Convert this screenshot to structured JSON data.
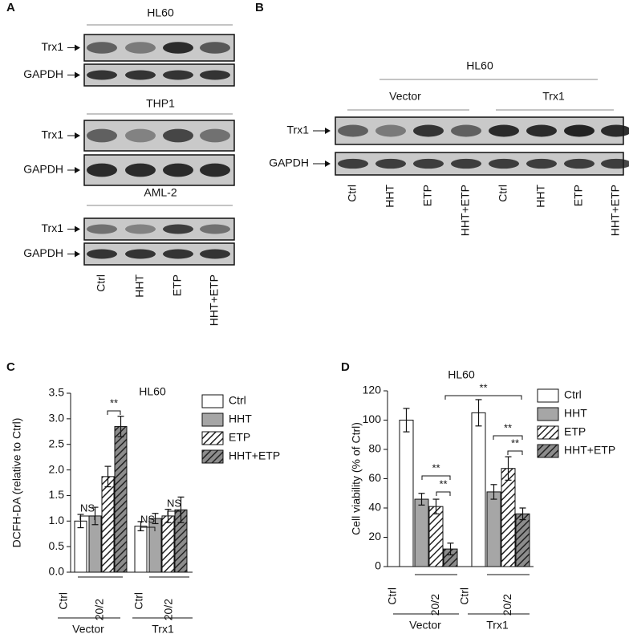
{
  "panel_labels": [
    "A",
    "B",
    "C",
    "D"
  ],
  "blots": [
    {
      "title": "HL60",
      "rows": [
        "Trx1",
        "GAPDH"
      ]
    },
    {
      "title": "THP1",
      "rows": [
        "Trx1",
        "GAPDH"
      ]
    },
    {
      "title": "AML-2",
      "rows": [
        "Trx1",
        "GAPDH"
      ]
    }
  ],
  "blot_lanes": [
    "Ctrl",
    "HHT",
    "ETP",
    "HHT+ETP"
  ],
  "blot_b": {
    "title": "HL60",
    "groups": [
      "Vector",
      "Trx1"
    ],
    "rows": [
      "Trx1",
      "GAPDH"
    ],
    "lanes": [
      "Ctrl",
      "HHT",
      "ETP",
      "HHT+ETP",
      "Ctrl",
      "HHT",
      "ETP",
      "HHT+ETP"
    ]
  },
  "chart_data": [
    {
      "type": "bar",
      "title": "HL60",
      "ylabel": "DCFH-DA (relative to Ctrl)",
      "categories": [
        "Vector",
        "Trx1"
      ],
      "sublabels": [
        "Ctrl",
        "20/2"
      ],
      "series": [
        {
          "name": "Ctrl",
          "color": "#ffffff",
          "hatch": false,
          "values": [
            1.0,
            0.9
          ],
          "errors": [
            0.13,
            0.09
          ]
        },
        {
          "name": "HHT",
          "color": "#a6a6a6",
          "hatch": false,
          "values": [
            1.1,
            1.05
          ],
          "errors": [
            0.17,
            0.1
          ]
        },
        {
          "name": "ETP",
          "color": "#ffffff",
          "hatch": true,
          "values": [
            1.87,
            1.1
          ],
          "errors": [
            0.2,
            0.13
          ]
        },
        {
          "name": "HHT+ETP",
          "color": "#8c8c8c",
          "hatch": true,
          "values": [
            2.85,
            1.22
          ],
          "errors": [
            0.2,
            0.25
          ]
        }
      ],
      "ylim": [
        0,
        3.5
      ],
      "yticks": [
        {
          "value": 0,
          "label": "0.0"
        },
        0.5,
        {
          "value": 1,
          "label": "1.0"
        },
        1.5,
        {
          "value": 2,
          "label": "2.0"
        },
        2.5,
        {
          "value": 3,
          "label": "3.0"
        },
        3.5
      ],
      "annotations": [
        "NS",
        "**",
        "NS",
        "NS"
      ],
      "legend": "right"
    },
    {
      "type": "bar",
      "title": "HL60",
      "ylabel": "Cell viability (% of Ctrl)",
      "categories": [
        "Vector",
        "Trx1"
      ],
      "sublabels": [
        "Ctrl",
        "20/2"
      ],
      "series": [
        {
          "name": "Ctrl",
          "color": "#ffffff",
          "hatch": false,
          "values": [
            100,
            105
          ],
          "errors": [
            8,
            9
          ]
        },
        {
          "name": "HHT",
          "color": "#a6a6a6",
          "hatch": false,
          "values": [
            46,
            51
          ],
          "errors": [
            4,
            5
          ]
        },
        {
          "name": "ETP",
          "color": "#ffffff",
          "hatch": true,
          "values": [
            41,
            67
          ],
          "errors": [
            5,
            8
          ]
        },
        {
          "name": "HHT+ETP",
          "color": "#8c8c8c",
          "hatch": true,
          "values": [
            12,
            36
          ],
          "errors": [
            4,
            4
          ]
        }
      ],
      "ylim": [
        0,
        120
      ],
      "yticks": [
        0,
        20,
        40,
        60,
        80,
        100,
        120
      ],
      "annotations": [
        "**",
        "**",
        "**",
        "**",
        "**"
      ],
      "legend": "right"
    }
  ]
}
